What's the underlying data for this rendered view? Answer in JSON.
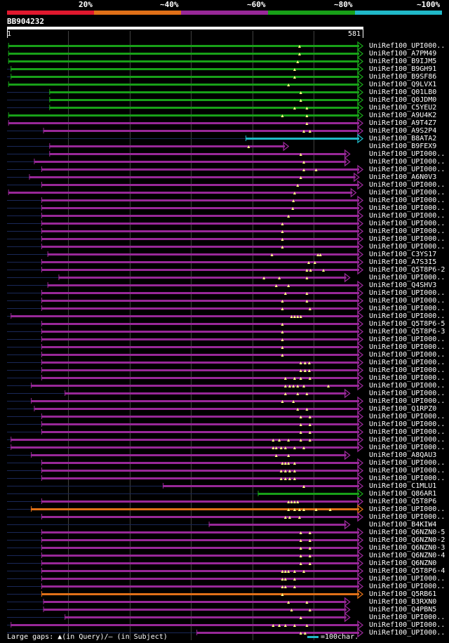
{
  "legend": {
    "colors": [
      "#e0182e",
      "#e07018",
      "#982898",
      "#18a018",
      "#20b8c8"
    ],
    "labels": [
      "20%",
      "~40%",
      "~60%",
      "~80%",
      "~100%"
    ]
  },
  "query": {
    "id": "BB904232",
    "start": "1",
    "end": "581",
    "length": 581
  },
  "hits": [
    {
      "label": "UniRef100_UPI000..",
      "color": "green",
      "start": 3,
      "end": 581,
      "query_gaps": [
        478
      ]
    },
    {
      "label": "UniRef100_A7PM49",
      "color": "green",
      "start": 3,
      "end": 581,
      "query_gaps": [
        478
      ]
    },
    {
      "label": "UniRef100_B9IJM5",
      "color": "green",
      "start": 3,
      "end": 581,
      "query_gaps": [
        475
      ]
    },
    {
      "label": "UniRef100_B9GH91",
      "color": "green",
      "start": 7,
      "end": 581,
      "query_gaps": [
        470
      ]
    },
    {
      "label": "UniRef100_B9SF86",
      "color": "green",
      "start": 7,
      "end": 581,
      "query_gaps": [
        470
      ]
    },
    {
      "label": "UniRef100_Q9LVX1",
      "color": "green",
      "start": 3,
      "end": 581,
      "query_gaps": [
        460
      ]
    },
    {
      "label": "UniRef100_Q01LB0",
      "color": "green",
      "start": 70,
      "end": 581,
      "query_gaps": [
        480
      ]
    },
    {
      "label": "UniRef100_Q0JDM0",
      "color": "green",
      "start": 70,
      "end": 581,
      "query_gaps": [
        480
      ]
    },
    {
      "label": "UniRef100_C5YEU2",
      "color": "green",
      "start": 70,
      "end": 581,
      "query_gaps": [
        470,
        490
      ]
    },
    {
      "label": "UniRef100_A9U4K2",
      "color": "green",
      "start": 3,
      "end": 581,
      "query_gaps": [
        450,
        490
      ]
    },
    {
      "label": "UniRef100_A9T4Z7",
      "color": "purple",
      "start": 3,
      "end": 581,
      "query_gaps": [
        490
      ]
    },
    {
      "label": "UniRef100_A9S2P4",
      "color": "purple",
      "start": 60,
      "end": 581,
      "query_gaps": [
        485,
        495
      ]
    },
    {
      "label": "UniRef100_B8ATA2",
      "color": "teal",
      "start": 390,
      "end": 581,
      "query_gaps": []
    },
    {
      "label": "UniRef100_B9FEX9",
      "color": "purple",
      "start": 70,
      "end": 460,
      "query_gaps": [
        395
      ]
    },
    {
      "label": "UniRef100_UPI000..",
      "color": "purple",
      "start": 70,
      "end": 560,
      "query_gaps": [
        480
      ]
    },
    {
      "label": "UniRef100_UPI000..",
      "color": "purple",
      "start": 45,
      "end": 560,
      "query_gaps": [
        485
      ]
    },
    {
      "label": "UniRef100_UPI000..",
      "color": "purple",
      "start": 57,
      "end": 581,
      "query_gaps": [
        485,
        505
      ]
    },
    {
      "label": "UniRef100_A6N0V3",
      "color": "purple",
      "start": 37,
      "end": 575,
      "query_gaps": [
        480
      ]
    },
    {
      "label": "UniRef100_UPI000..",
      "color": "purple",
      "start": 57,
      "end": 581,
      "query_gaps": [
        475
      ]
    },
    {
      "label": "UniRef100_UPI000..",
      "color": "purple",
      "start": 3,
      "end": 570,
      "query_gaps": [
        470
      ]
    },
    {
      "label": "UniRef100_UPI000..",
      "color": "purple",
      "start": 57,
      "end": 581,
      "query_gaps": [
        468
      ]
    },
    {
      "label": "UniRef100_UPI000..",
      "color": "purple",
      "start": 57,
      "end": 581,
      "query_gaps": [
        467
      ]
    },
    {
      "label": "UniRef100_UPI000..",
      "color": "purple",
      "start": 57,
      "end": 581,
      "query_gaps": [
        460
      ]
    },
    {
      "label": "UniRef100_UPI000..",
      "color": "purple",
      "start": 57,
      "end": 581,
      "query_gaps": [
        450
      ]
    },
    {
      "label": "UniRef100_UPI000..",
      "color": "purple",
      "start": 57,
      "end": 581,
      "query_gaps": [
        450
      ]
    },
    {
      "label": "UniRef100_UPI000..",
      "color": "purple",
      "start": 57,
      "end": 581,
      "query_gaps": [
        450
      ]
    },
    {
      "label": "UniRef100_UPI000..",
      "color": "purple",
      "start": 57,
      "end": 581,
      "query_gaps": [
        450
      ]
    },
    {
      "label": "UniRef100_C3YS17",
      "color": "purple",
      "start": 67,
      "end": 581,
      "query_gaps": [
        433,
        508,
        512
      ]
    },
    {
      "label": "UniRef100_A7S3I5",
      "color": "purple",
      "start": 57,
      "end": 581,
      "query_gaps": [
        493,
        503
      ]
    },
    {
      "label": "UniRef100_Q5T8P6-2",
      "color": "purple",
      "start": 57,
      "end": 581,
      "query_gaps": [
        490,
        496,
        517
      ]
    },
    {
      "label": "UniRef100_UPI000..",
      "color": "purple",
      "start": 85,
      "end": 560,
      "query_gaps": [
        420,
        445,
        490
      ]
    },
    {
      "label": "UniRef100_Q4SHV3",
      "color": "purple",
      "start": 67,
      "end": 581,
      "query_gaps": [
        440,
        460
      ]
    },
    {
      "label": "UniRef100_UPI000..",
      "color": "purple",
      "start": 57,
      "end": 581,
      "query_gaps": [
        455,
        490
      ]
    },
    {
      "label": "UniRef100_UPI000..",
      "color": "purple",
      "start": 57,
      "end": 581,
      "query_gaps": [
        450,
        490
      ]
    },
    {
      "label": "UniRef100_UPI000..",
      "color": "purple",
      "start": 57,
      "end": 581,
      "query_gaps": [
        450,
        495
      ]
    },
    {
      "label": "UniRef100_UPI000..",
      "color": "purple",
      "start": 7,
      "end": 581,
      "query_gaps": [
        465,
        470,
        475,
        480
      ]
    },
    {
      "label": "UniRef100_Q5T8P6-5",
      "color": "purple",
      "start": 57,
      "end": 581,
      "query_gaps": [
        450
      ]
    },
    {
      "label": "UniRef100_Q5T8P6-3",
      "color": "purple",
      "start": 57,
      "end": 581,
      "query_gaps": [
        450
      ]
    },
    {
      "label": "UniRef100_UPI000..",
      "color": "purple",
      "start": 57,
      "end": 581,
      "query_gaps": [
        450
      ]
    },
    {
      "label": "UniRef100_UPI000..",
      "color": "purple",
      "start": 57,
      "end": 581,
      "query_gaps": [
        450
      ]
    },
    {
      "label": "UniRef100_UPI000..",
      "color": "purple",
      "start": 57,
      "end": 581,
      "query_gaps": [
        450
      ]
    },
    {
      "label": "UniRef100_UPI000..",
      "color": "purple",
      "start": 57,
      "end": 581,
      "query_gaps": [
        480,
        487,
        494
      ]
    },
    {
      "label": "UniRef100_UPI000..",
      "color": "purple",
      "start": 57,
      "end": 581,
      "query_gaps": [
        480,
        487,
        494
      ]
    },
    {
      "label": "UniRef100_UPI000..",
      "color": "purple",
      "start": 57,
      "end": 581,
      "query_gaps": [
        455,
        470,
        480,
        495
      ]
    },
    {
      "label": "UniRef100_UPI000..",
      "color": "purple",
      "start": 40,
      "end": 581,
      "query_gaps": [
        455,
        462,
        468,
        475,
        485,
        525
      ]
    },
    {
      "label": "UniRef100_UPI000..",
      "color": "purple",
      "start": 95,
      "end": 560,
      "query_gaps": [
        455,
        475,
        490
      ]
    },
    {
      "label": "UniRef100_UPI000..",
      "color": "purple",
      "start": 40,
      "end": 581,
      "query_gaps": [
        450,
        468
      ]
    },
    {
      "label": "UniRef100_Q1RPZ0",
      "color": "purple",
      "start": 45,
      "end": 581,
      "query_gaps": [
        475,
        490
      ]
    },
    {
      "label": "UniRef100_UPI000..",
      "color": "purple",
      "start": 57,
      "end": 581,
      "query_gaps": [
        480,
        495
      ]
    },
    {
      "label": "UniRef100_UPI000..",
      "color": "purple",
      "start": 57,
      "end": 581,
      "query_gaps": [
        480,
        495
      ]
    },
    {
      "label": "UniRef100_UPI000..",
      "color": "purple",
      "start": 57,
      "end": 581,
      "query_gaps": [
        480,
        495
      ]
    },
    {
      "label": "UniRef100_UPI000..",
      "color": "purple",
      "start": 7,
      "end": 581,
      "query_gaps": [
        435,
        445,
        460,
        480,
        495
      ]
    },
    {
      "label": "UniRef100_UPI000..",
      "color": "purple",
      "start": 7,
      "end": 581,
      "query_gaps": [
        435,
        440,
        448,
        455,
        470,
        485
      ]
    },
    {
      "label": "UniRef100_A8QAU3",
      "color": "purple",
      "start": 40,
      "end": 560,
      "query_gaps": [
        440,
        460
      ]
    },
    {
      "label": "UniRef100_UPI000..",
      "color": "purple",
      "start": 57,
      "end": 581,
      "query_gaps": [
        450,
        455,
        460,
        470
      ]
    },
    {
      "label": "UniRef100_UPI000..",
      "color": "purple",
      "start": 57,
      "end": 581,
      "query_gaps": [
        448,
        455,
        462,
        470
      ]
    },
    {
      "label": "UniRef100_UPI000..",
      "color": "purple",
      "start": 57,
      "end": 581,
      "query_gaps": [
        448,
        455,
        462,
        470
      ]
    },
    {
      "label": "UniRef100_C1MLU1",
      "color": "purple",
      "start": 255,
      "end": 581,
      "query_gaps": [
        485
      ]
    },
    {
      "label": "UniRef100_Q86AR1",
      "color": "green",
      "start": 410,
      "end": 581,
      "query_gaps": []
    },
    {
      "label": "UniRef100_Q5T8P6",
      "color": "purple",
      "start": 57,
      "end": 581,
      "query_gaps": [
        460,
        465,
        470,
        475
      ]
    },
    {
      "label": "UniRef100_UPI000..",
      "color": "orange",
      "start": 40,
      "end": 581,
      "query_gaps": [
        460,
        470,
        478,
        485,
        505,
        528
      ]
    },
    {
      "label": "UniRef100_UPI000..",
      "color": "purple",
      "start": 57,
      "end": 581,
      "query_gaps": [
        455,
        462,
        478
      ]
    },
    {
      "label": "UniRef100_B4KIW4",
      "color": "purple",
      "start": 330,
      "end": 560,
      "query_gaps": []
    },
    {
      "label": "UniRef100_Q6NZN0-5",
      "color": "purple",
      "start": 57,
      "end": 581,
      "query_gaps": [
        480,
        495
      ]
    },
    {
      "label": "UniRef100_Q6NZN0-2",
      "color": "purple",
      "start": 57,
      "end": 581,
      "query_gaps": [
        480,
        495
      ]
    },
    {
      "label": "UniRef100_Q6NZN0-3",
      "color": "purple",
      "start": 57,
      "end": 581,
      "query_gaps": [
        480,
        495
      ]
    },
    {
      "label": "UniRef100_Q6NZN0-4",
      "color": "purple",
      "start": 57,
      "end": 581,
      "query_gaps": [
        480,
        495
      ]
    },
    {
      "label": "UniRef100_Q6NZN0",
      "color": "purple",
      "start": 57,
      "end": 581,
      "query_gaps": [
        480,
        495
      ]
    },
    {
      "label": "UniRef100_Q5T8P6-4",
      "color": "purple",
      "start": 57,
      "end": 581,
      "query_gaps": [
        450,
        455,
        460,
        470,
        485
      ]
    },
    {
      "label": "UniRef100_UPI000..",
      "color": "purple",
      "start": 57,
      "end": 581,
      "query_gaps": [
        450,
        455,
        470
      ]
    },
    {
      "label": "UniRef100_UPI000..",
      "color": "purple",
      "start": 57,
      "end": 581,
      "query_gaps": [
        450,
        455,
        470
      ]
    },
    {
      "label": "UniRef100_Q5RB61",
      "color": "orange",
      "start": 57,
      "end": 581,
      "query_gaps": [
        450
      ]
    },
    {
      "label": "UniRef100_B3RXN0",
      "color": "purple",
      "start": 60,
      "end": 560,
      "query_gaps": [
        460,
        490
      ]
    },
    {
      "label": "UniRef100_Q4PBN5",
      "color": "purple",
      "start": 60,
      "end": 560,
      "query_gaps": [
        465,
        495
      ]
    },
    {
      "label": "UniRef100_UPI000..",
      "color": "purple",
      "start": 95,
      "end": 560,
      "query_gaps": [
        480
      ]
    },
    {
      "label": "UniRef100_UPI000..",
      "color": "purple",
      "start": 7,
      "end": 581,
      "query_gaps": [
        435,
        445,
        455,
        470,
        490
      ]
    },
    {
      "label": "UniRef100_UPI000..",
      "color": "purple",
      "start": 310,
      "end": 581,
      "query_gaps": [
        480,
        487
      ]
    }
  ],
  "colors": {
    "green": "#18a018",
    "purple": "#982898",
    "teal": "#20b8c8",
    "orange": "#e07018",
    "gridline": "#404040",
    "subject-gap": "#1a2858",
    "gap-marker": "#ffff80"
  },
  "footer": {
    "large_gaps": "Large gaps: ▲(in Query)/— (in Subject)",
    "scale": "=100char."
  }
}
